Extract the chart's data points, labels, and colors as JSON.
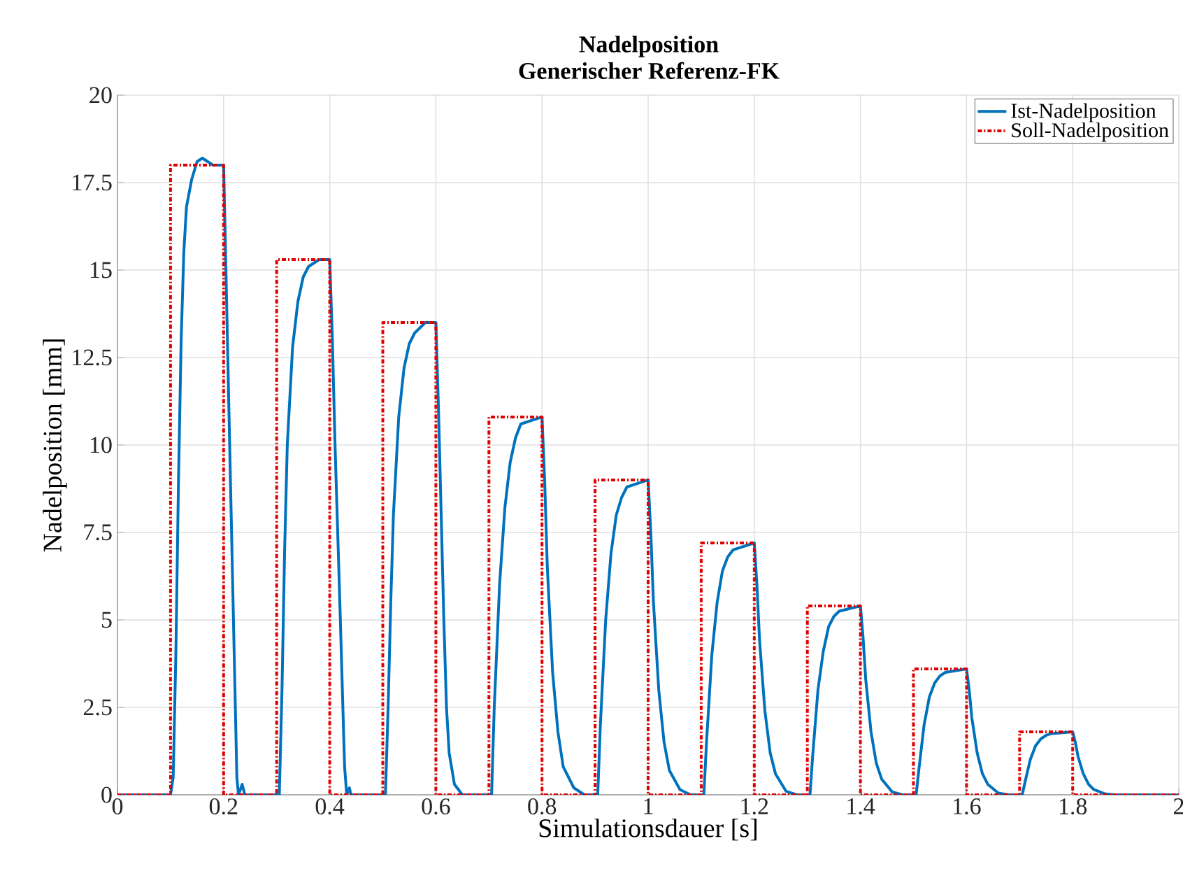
{
  "chart_data": {
    "type": "line",
    "title": "**Nadelposition**",
    "subtitle": "**Generischer Referenz-FK**",
    "xlabel": "Simulationsdauer [s]",
    "ylabel": "Nadelposition [mm]",
    "xlim": [
      0,
      2
    ],
    "ylim": [
      0,
      20
    ],
    "xticks": [
      0,
      0.2,
      0.4,
      0.6,
      0.8,
      1,
      1.2,
      1.4,
      1.6,
      1.8,
      2
    ],
    "yticks": [
      0,
      2.5,
      5,
      7.5,
      10,
      12.5,
      15,
      17.5,
      20
    ],
    "grid": true,
    "legend": "top right",
    "series": [
      {
        "name": "Ist-Nadelposition",
        "color": "#0072bd",
        "line_style": "solid",
        "x": [
          0,
          0.1,
          0.105,
          0.11,
          0.115,
          0.12,
          0.125,
          0.13,
          0.14,
          0.15,
          0.16,
          0.18,
          0.2,
          0.203,
          0.21,
          0.22,
          0.225,
          0.228,
          0.235,
          0.24,
          0.3,
          0.305,
          0.31,
          0.315,
          0.32,
          0.33,
          0.34,
          0.35,
          0.36,
          0.38,
          0.4,
          0.405,
          0.41,
          0.42,
          0.428,
          0.432,
          0.437,
          0.44,
          0.5,
          0.505,
          0.51,
          0.515,
          0.52,
          0.53,
          0.54,
          0.55,
          0.56,
          0.58,
          0.6,
          0.605,
          0.61,
          0.615,
          0.62,
          0.625,
          0.635,
          0.65,
          0.7,
          0.705,
          0.71,
          0.72,
          0.73,
          0.74,
          0.75,
          0.76,
          0.8,
          0.805,
          0.81,
          0.82,
          0.83,
          0.84,
          0.86,
          0.88,
          0.9,
          0.905,
          0.91,
          0.92,
          0.93,
          0.94,
          0.95,
          0.96,
          1.0,
          1.005,
          1.01,
          1.02,
          1.03,
          1.04,
          1.06,
          1.08,
          1.1,
          1.105,
          1.11,
          1.12,
          1.13,
          1.14,
          1.15,
          1.16,
          1.2,
          1.205,
          1.21,
          1.22,
          1.23,
          1.24,
          1.26,
          1.28,
          1.3,
          1.305,
          1.31,
          1.32,
          1.33,
          1.34,
          1.35,
          1.36,
          1.4,
          1.405,
          1.41,
          1.42,
          1.43,
          1.44,
          1.46,
          1.48,
          1.5,
          1.505,
          1.51,
          1.52,
          1.53,
          1.54,
          1.55,
          1.56,
          1.6,
          1.605,
          1.61,
          1.62,
          1.63,
          1.64,
          1.66,
          1.68,
          1.7,
          1.705,
          1.71,
          1.72,
          1.73,
          1.74,
          1.75,
          1.76,
          1.8,
          1.805,
          1.81,
          1.82,
          1.83,
          1.84,
          1.86,
          1.88,
          2.0
        ],
        "values": [
          0,
          0,
          0.5,
          4,
          9,
          13,
          15.5,
          16.8,
          17.6,
          18.1,
          18.2,
          18,
          18,
          16,
          11,
          4,
          0.5,
          0,
          0.3,
          0,
          0,
          0,
          3,
          7,
          10,
          12.8,
          14.1,
          14.8,
          15.1,
          15.3,
          15.3,
          13,
          10,
          5,
          0.8,
          0,
          0.2,
          0,
          0,
          0,
          2.5,
          5.5,
          8,
          10.8,
          12.2,
          12.9,
          13.2,
          13.5,
          13.5,
          11,
          8,
          5,
          2.5,
          1.2,
          0.3,
          0,
          0,
          0,
          2.5,
          6,
          8.2,
          9.5,
          10.2,
          10.6,
          10.8,
          9,
          6.5,
          3.5,
          1.8,
          0.8,
          0.2,
          0,
          0,
          0,
          2,
          5,
          6.9,
          8,
          8.5,
          8.8,
          9,
          7.5,
          5.5,
          3,
          1.5,
          0.7,
          0.15,
          0,
          0,
          0,
          1.5,
          4,
          5.5,
          6.4,
          6.8,
          7.0,
          7.2,
          6,
          4.4,
          2.4,
          1.2,
          0.6,
          0.1,
          0,
          0,
          0,
          1.1,
          3,
          4.1,
          4.8,
          5.1,
          5.25,
          5.4,
          4.5,
          3.3,
          1.8,
          0.9,
          0.45,
          0.08,
          0,
          0,
          0,
          0.7,
          2,
          2.8,
          3.2,
          3.4,
          3.5,
          3.6,
          3,
          2.2,
          1.2,
          0.6,
          0.3,
          0.05,
          0,
          0,
          0,
          0.35,
          1,
          1.4,
          1.6,
          1.7,
          1.75,
          1.8,
          1.5,
          1.1,
          0.6,
          0.3,
          0.15,
          0.03,
          0,
          0
        ]
      },
      {
        "name": "Soll-Nadelposition",
        "type": "step",
        "color": "#e00000",
        "line_style": "dashed",
        "x": [
          0,
          0.1,
          0.2,
          0.3,
          0.4,
          0.5,
          0.6,
          0.7,
          0.8,
          0.9,
          1.0,
          1.1,
          1.2,
          1.3,
          1.4,
          1.5,
          1.6,
          1.7,
          1.8,
          2.0
        ],
        "values": [
          0,
          18,
          0,
          15.3,
          0,
          13.5,
          0,
          10.8,
          0,
          9,
          0,
          7.2,
          0,
          5.4,
          0,
          3.6,
          0,
          1.8,
          0,
          0
        ]
      }
    ]
  }
}
